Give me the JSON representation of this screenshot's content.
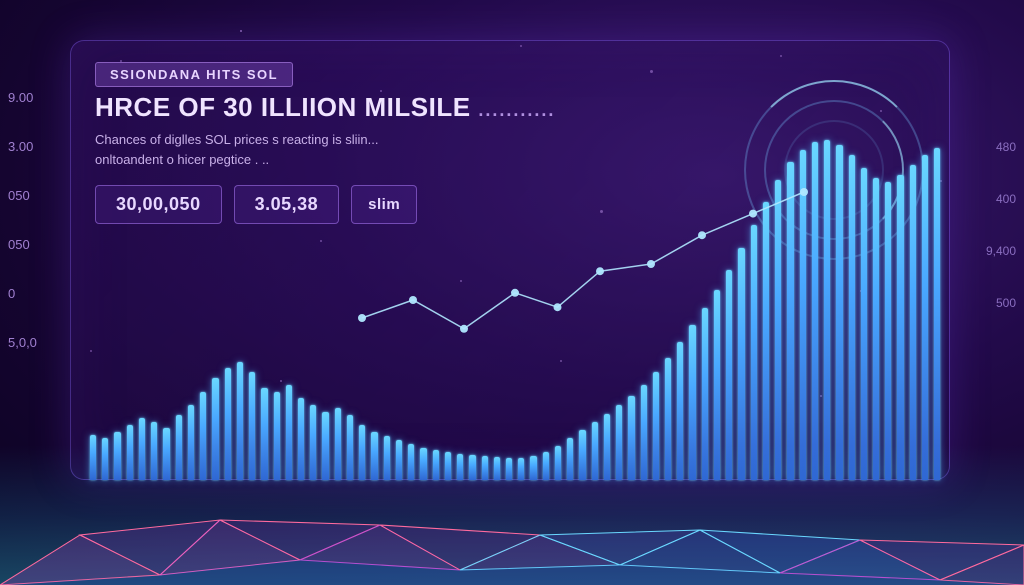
{
  "background": {
    "gradient_center": "#3a1a6e",
    "gradient_mid": "#220a4a",
    "gradient_outer": "#0a0220",
    "particle_color": "#d4a6ff"
  },
  "panel": {
    "border_color": "rgba(140,100,255,0.4)",
    "border_radius": 14
  },
  "tag": {
    "label": "SSIONDANA HITS SOL"
  },
  "headline": {
    "text": "HRCE OF 30 ILLIION MILSILE",
    "dots": "..........."
  },
  "subtitle": {
    "line1": "Chances of diglles SOL prices s reacting is sliin...",
    "line2": "onltoandent o hicer pegtice . .."
  },
  "stats": {
    "box1": "30,00,050",
    "box2": "3.05,38",
    "box3": "slim"
  },
  "left_axis": [
    "9.00",
    "3.00",
    "050",
    "050",
    "0",
    "5,0,0"
  ],
  "right_axis": [
    "480",
    "400",
    "9,400",
    "500"
  ],
  "chart": {
    "type": "bar+line",
    "bar_count": 70,
    "bar_values": [
      45,
      42,
      48,
      55,
      62,
      58,
      52,
      65,
      75,
      88,
      102,
      112,
      118,
      108,
      92,
      88,
      95,
      82,
      75,
      68,
      72,
      65,
      55,
      48,
      44,
      40,
      36,
      32,
      30,
      28,
      26,
      25,
      24,
      23,
      22,
      22,
      24,
      28,
      34,
      42,
      50,
      58,
      66,
      75,
      84,
      95,
      108,
      122,
      138,
      155,
      172,
      190,
      210,
      232,
      255,
      278,
      300,
      318,
      330,
      338,
      340,
      335,
      325,
      312,
      302,
      298,
      305,
      315,
      325,
      332
    ],
    "bar_color_top": "#6ad8ff",
    "bar_color_mid": "#4aa8ff",
    "bar_color_bottom": "#3060d0",
    "line_points": [
      {
        "x": 0.32,
        "y": 0.55
      },
      {
        "x": 0.38,
        "y": 0.5
      },
      {
        "x": 0.44,
        "y": 0.58
      },
      {
        "x": 0.5,
        "y": 0.48
      },
      {
        "x": 0.55,
        "y": 0.52
      },
      {
        "x": 0.6,
        "y": 0.42
      },
      {
        "x": 0.66,
        "y": 0.4
      },
      {
        "x": 0.72,
        "y": 0.32
      },
      {
        "x": 0.78,
        "y": 0.26
      },
      {
        "x": 0.84,
        "y": 0.2
      }
    ],
    "line_color": "#b0e8ff",
    "line_width": 1.5,
    "marker_radius": 4
  },
  "hud": {
    "ring_color": "rgba(120,200,255,0.3)",
    "ring_highlight": "rgba(160,230,255,0.7)"
  },
  "floor": {
    "glow_color": "rgba(60,230,255,0.3)",
    "mesh_stroke": "#ff6a9e",
    "mesh_stroke2": "#6ad8ff",
    "mesh_fill": "rgba(180,60,200,0.25)"
  }
}
